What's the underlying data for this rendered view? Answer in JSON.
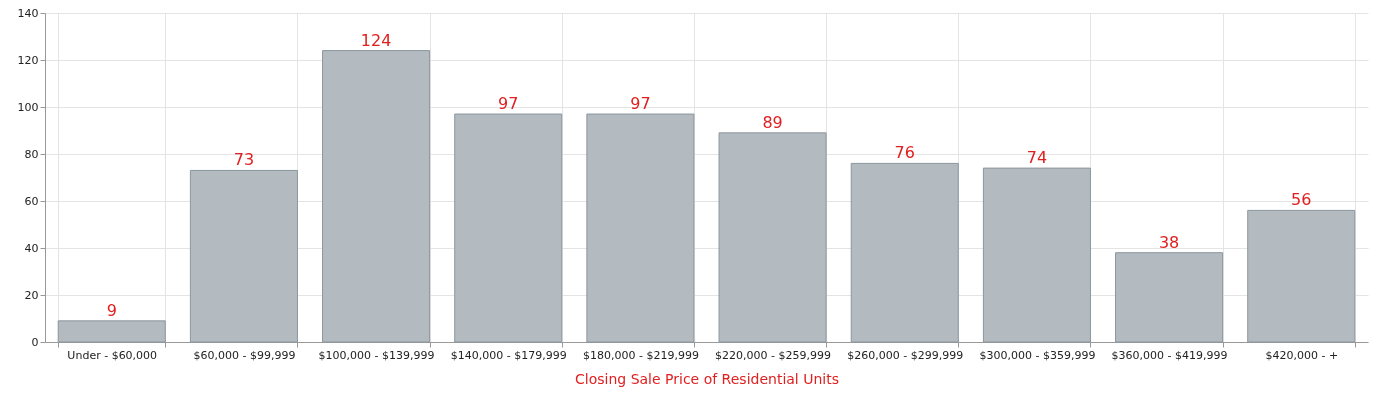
{
  "chart_data": {
    "type": "bar",
    "xlabel": "Closing Sale Price of Residential Units",
    "categories": [
      "Under - $60,000",
      "$60,000 - $99,999",
      "$100,000 - $139,999",
      "$140,000 - $179,999",
      "$180,000 - $219,999",
      "$220,000 - $259,999",
      "$260,000 - $299,999",
      "$300,000 - $359,999",
      "$360,000 - $419,999",
      "$420,000 - +"
    ],
    "values": [
      9,
      73,
      124,
      97,
      97,
      89,
      76,
      74,
      38,
      56
    ],
    "color": "#b3bbc1",
    "ylim": [
      0,
      140
    ],
    "yticks": [
      0,
      20,
      40,
      60,
      80,
      100,
      120,
      140
    ],
    "grid": true,
    "data_labels": true
  }
}
